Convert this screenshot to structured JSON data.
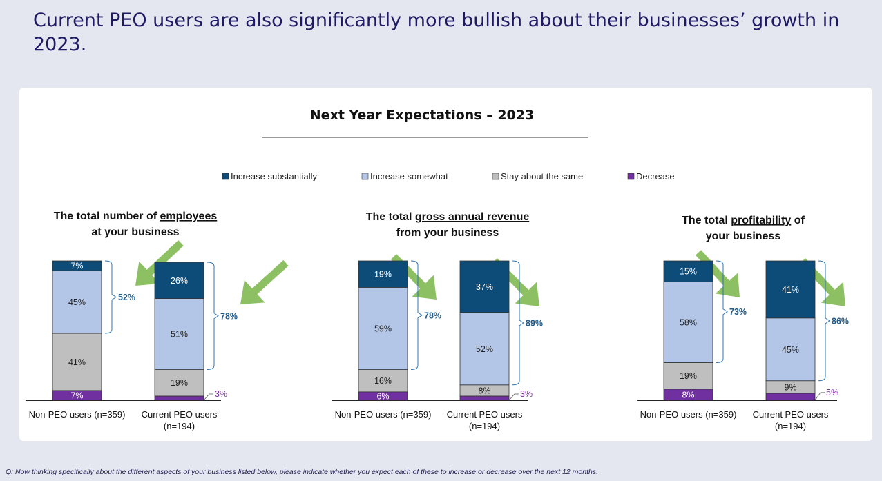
{
  "headline": "Current PEO users are also significantly more bullish about their businesses’ growth in 2023.",
  "footnote": "Q:  Now thinking specifically about the different aspects of your business listed below, please indicate whether you expect each of these to increase or decrease over the next 12 months.",
  "colors": {
    "increase_substantially": "#0d4c78",
    "increase_somewhat": "#b4c6e7",
    "stay_same": "#bfbfbf",
    "decrease": "#7030a0",
    "arrow": "#7ab648",
    "bracket": "#2e75b6"
  },
  "chart_data": {
    "type": "bar",
    "stacked": true,
    "title": "Next Year Expectations – 2023",
    "legend": [
      "Increase substantially",
      "Increase somewhat",
      "Stay about the same",
      "Decrease"
    ],
    "legend_position": "top",
    "groups": [
      {
        "title_pre": "The total number of ",
        "title_ul": "employees",
        "title_line2": "at your business",
        "bars": [
          {
            "cat1": "Non-PEO users (n=359)",
            "cat2": "",
            "values": [
              7,
              45,
              41,
              7
            ],
            "labels": [
              "7%",
              "45%",
              "41%",
              "7%"
            ],
            "total": "52%"
          },
          {
            "cat1": "Current PEO users",
            "cat2": "(n=194)",
            "values": [
              26,
              51,
              19,
              3
            ],
            "labels": [
              "26%",
              "51%",
              "19%",
              "3%"
            ],
            "total": "78%"
          }
        ]
      },
      {
        "title_pre": "The total ",
        "title_ul": "gross annual revenue",
        "title_line2": "from your business",
        "bars": [
          {
            "cat1": "Non-PEO users (n=359)",
            "cat2": "",
            "values": [
              19,
              59,
              16,
              6
            ],
            "labels": [
              "19%",
              "59%",
              "16%",
              "6%"
            ],
            "total": "78%"
          },
          {
            "cat1": "Current PEO users",
            "cat2": "(n=194)",
            "values": [
              37,
              52,
              8,
              3
            ],
            "labels": [
              "37%",
              "52%",
              "8%",
              "3%"
            ],
            "total": "89%"
          }
        ]
      },
      {
        "title_pre": "The total ",
        "title_ul": "profitability",
        "title_post": " of",
        "title_line2": "your business",
        "bars": [
          {
            "cat1": "Non-PEO users (n=359)",
            "cat2": "",
            "values": [
              15,
              58,
              19,
              8
            ],
            "labels": [
              "15%",
              "58%",
              "19%",
              "8%"
            ],
            "total": "73%"
          },
          {
            "cat1": "Current PEO users",
            "cat2": "(n=194)",
            "values": [
              41,
              45,
              9,
              5
            ],
            "labels": [
              "41%",
              "45%",
              "9%",
              "5%"
            ],
            "total": "86%"
          }
        ]
      }
    ]
  }
}
